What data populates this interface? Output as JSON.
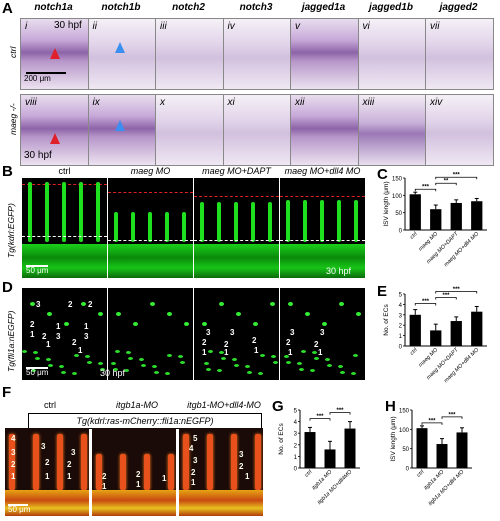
{
  "panelA": {
    "label": "A",
    "genes": [
      "notch1a",
      "notch1b",
      "notch2",
      "notch3",
      "jagged1a",
      "jagged1b",
      "jagged2"
    ],
    "row_top_label": "ctrl",
    "row_bottom_label": "maeg -/-",
    "top_romans": [
      "i",
      "ii",
      "iii",
      "iv",
      "v",
      "vi",
      "vii"
    ],
    "bottom_romans": [
      "viii",
      "ix",
      "x",
      "xi",
      "xii",
      "xiii",
      "xiv"
    ],
    "hpf_top": "30 hpf",
    "hpf_bottom": "30 hpf",
    "scale": "200 μm"
  },
  "panelB": {
    "label": "B",
    "columns": [
      "ctrl",
      "maeg MO",
      "maeg MO+DAPT",
      "maeg MO+dll4 MO"
    ],
    "side": "Tg(kdrl:EGFP)",
    "scale": "50 μm",
    "hpf": "30 hpf"
  },
  "panelD": {
    "label": "D",
    "side": "Tg(fli1a:nEGFP)",
    "scale": "50 μm",
    "hpf": "30 hpf",
    "num_sets": [
      [
        "3",
        "2",
        "1",
        "2",
        "1",
        "3",
        "2",
        "1",
        "3",
        "2",
        "1",
        "2",
        "1"
      ],
      [],
      [
        "3",
        "2",
        "1",
        "3",
        "2",
        "1",
        "2",
        "1"
      ],
      [
        "3",
        "2",
        "1",
        "3",
        "2",
        "1"
      ]
    ]
  },
  "panelF": {
    "label": "F",
    "columns": [
      "ctrl",
      "itgb1a-MO",
      "itgb1-MO+dll4-MO"
    ],
    "title": "Tg(kdrl:ras-mCherry::fli1a:nEGFP)",
    "scale": "50 μm"
  },
  "chart_data": [
    {
      "panel": "C",
      "type": "bar",
      "categories": [
        "ctrl",
        "maeg MO",
        "maeg MO+DAPT",
        "maeg MO+dll4 MO"
      ],
      "values": [
        103,
        60,
        78,
        83
      ],
      "errors": [
        6,
        12,
        9,
        8
      ],
      "ylabel": "ISV length (μm)",
      "ylim": [
        0,
        150
      ],
      "yticks": [
        "0",
        "50",
        "100",
        "150"
      ],
      "sig": [
        "***",
        "**",
        "***"
      ]
    },
    {
      "panel": "E",
      "type": "bar",
      "categories": [
        "ctrl",
        "maeg MO",
        "maeg MO+DAPT",
        "maeg MO+dll4 MO"
      ],
      "values": [
        3.0,
        1.5,
        2.4,
        3.3
      ],
      "errors": [
        0.5,
        0.6,
        0.4,
        0.5
      ],
      "ylabel": "No. of ECs",
      "ylim": [
        0,
        5
      ],
      "yticks": [
        "0",
        "1",
        "2",
        "3",
        "4",
        "5"
      ],
      "sig": [
        "***",
        "***",
        "***"
      ]
    },
    {
      "panel": "G",
      "type": "bar",
      "categories": [
        "ctrl",
        "itgb1a MO",
        "itgb1a MO+dll4MO"
      ],
      "values": [
        3.1,
        1.6,
        3.4
      ],
      "errors": [
        0.4,
        0.7,
        0.6
      ],
      "ylabel": "No. of ECs",
      "ylim": [
        0,
        5
      ],
      "yticks": [
        "0",
        "1",
        "2",
        "3",
        "4",
        "5"
      ],
      "sig": [
        "***",
        "***"
      ]
    },
    {
      "panel": "H",
      "type": "bar",
      "categories": [
        "ctrl",
        "itgb1a MO",
        "itgb1a MO+dll4 MO"
      ],
      "values": [
        103,
        62,
        92
      ],
      "errors": [
        6,
        14,
        12
      ],
      "ylabel": "ISV length (μm)",
      "ylim": [
        0,
        150
      ],
      "yticks": [
        "0",
        "50",
        "100",
        "150"
      ],
      "sig": [
        "***",
        "***"
      ]
    }
  ]
}
